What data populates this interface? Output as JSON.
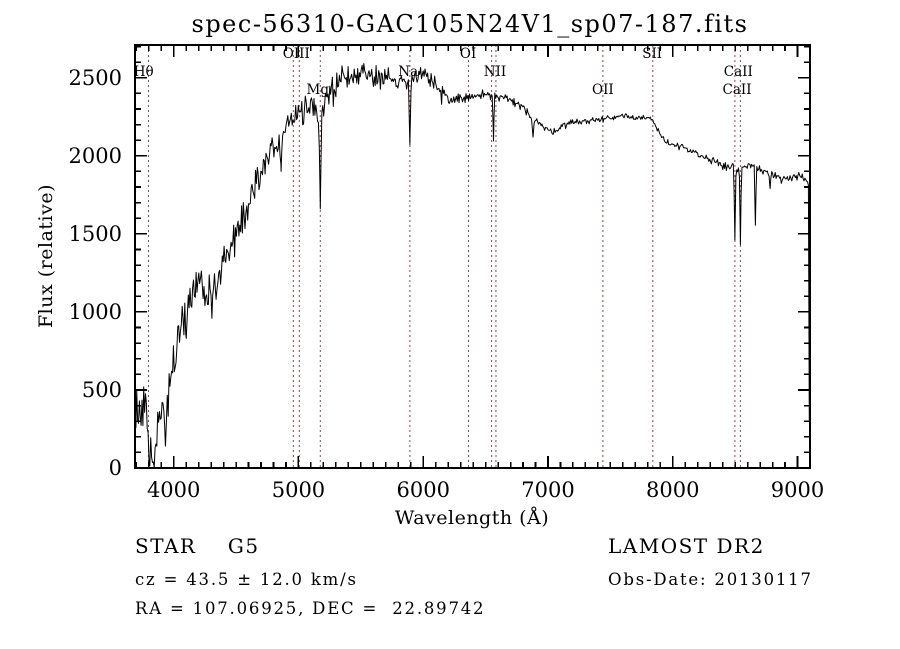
{
  "title": "spec-56310-GAC105N24V1_sp07-187.fits",
  "footer": {
    "class_line": "STAR    G5",
    "cz_line": "cz = 43.5 ± 12.0 km/s",
    "radec_line": "RA = 107.06925, DEC =  22.89742",
    "survey": "LAMOST DR2",
    "obs_date_line": "Obs-Date: 20130117"
  },
  "chart_data": {
    "type": "line",
    "title": "spec-56310-GAC105N24V1_sp07-187.fits",
    "xlabel": "Wavelength (Å)",
    "ylabel": "Flux (relative)",
    "xlim": [
      3690,
      9100
    ],
    "ylim": [
      0,
      2710
    ],
    "x_major_ticks": [
      4000,
      5000,
      6000,
      7000,
      8000,
      9000
    ],
    "x_minor_step": 100,
    "y_major_ticks": [
      0,
      500,
      1000,
      1500,
      2000,
      2500
    ],
    "y_minor_step": 100,
    "grid": false,
    "legend": "none",
    "line_color": "#000000",
    "marker_line_color": "#8a4a4a",
    "spectral_line_markers": [
      {
        "label": "Hθ",
        "row": "mid",
        "wavelengths": [
          3798
        ],
        "label_at": 3760
      },
      {
        "label": "OIII",
        "row": "top",
        "wavelengths": [
          4959,
          5007
        ],
        "label_at": 4983
      },
      {
        "label": "Mg",
        "row": "low",
        "wavelengths": [
          5175
        ],
        "label_at": 5155
      },
      {
        "label": "Na",
        "row": "mid",
        "wavelengths": [
          5893
        ],
        "label_at": 5880
      },
      {
        "label": "OI",
        "row": "top",
        "wavelengths": [
          6363
        ],
        "label_at": 6360
      },
      {
        "label": "NII",
        "row": "mid",
        "wavelengths": [
          6548,
          6583
        ],
        "label_at": 6575
      },
      {
        "label": "OII",
        "row": "low",
        "wavelengths": [
          7440
        ],
        "label_at": 7440
      },
      {
        "label": "SII",
        "row": "top",
        "wavelengths": [
          7840
        ],
        "label_at": 7835
      },
      {
        "label": "CaII",
        "row": "mid",
        "wavelengths": [
          8498
        ],
        "label_at": 8525
      },
      {
        "label": "CaII",
        "row": "low",
        "wavelengths": [
          8542
        ],
        "label_at": 8515
      }
    ],
    "continuum_anchors": [
      [
        3690,
        260
      ],
      [
        3715,
        390
      ],
      [
        3740,
        310
      ],
      [
        3765,
        430
      ],
      [
        3790,
        330
      ],
      [
        3808,
        110
      ],
      [
        3830,
        80
      ],
      [
        3858,
        150
      ],
      [
        3885,
        330
      ],
      [
        3910,
        430
      ],
      [
        3935,
        380
      ],
      [
        3960,
        520
      ],
      [
        3985,
        620
      ],
      [
        4010,
        720
      ],
      [
        4040,
        860
      ],
      [
        4070,
        950
      ],
      [
        4100,
        1010
      ],
      [
        4130,
        1090
      ],
      [
        4160,
        1150
      ],
      [
        4200,
        1230
      ],
      [
        4235,
        1180
      ],
      [
        4270,
        1090
      ],
      [
        4305,
        1100
      ],
      [
        4340,
        1200
      ],
      [
        4380,
        1300
      ],
      [
        4420,
        1380
      ],
      [
        4460,
        1460
      ],
      [
        4500,
        1530
      ],
      [
        4550,
        1610
      ],
      [
        4600,
        1700
      ],
      [
        4650,
        1800
      ],
      [
        4700,
        1900
      ],
      [
        4750,
        1990
      ],
      [
        4800,
        2060
      ],
      [
        4860,
        2110
      ],
      [
        4910,
        2190
      ],
      [
        4960,
        2250
      ],
      [
        5010,
        2290
      ],
      [
        5060,
        2310
      ],
      [
        5110,
        2330
      ],
      [
        5170,
        2300
      ],
      [
        5220,
        2380
      ],
      [
        5270,
        2430
      ],
      [
        5320,
        2470
      ],
      [
        5370,
        2505
      ],
      [
        5420,
        2520
      ],
      [
        5470,
        2530
      ],
      [
        5520,
        2535
      ],
      [
        5570,
        2525
      ],
      [
        5620,
        2515
      ],
      [
        5680,
        2505
      ],
      [
        5740,
        2495
      ],
      [
        5800,
        2485
      ],
      [
        5860,
        2465
      ],
      [
        5920,
        2500
      ],
      [
        5970,
        2535
      ],
      [
        6010,
        2540
      ],
      [
        6060,
        2505
      ],
      [
        6110,
        2440
      ],
      [
        6160,
        2390
      ],
      [
        6210,
        2360
      ],
      [
        6260,
        2370
      ],
      [
        6310,
        2385
      ],
      [
        6360,
        2365
      ],
      [
        6410,
        2380
      ],
      [
        6460,
        2390
      ],
      [
        6510,
        2390
      ],
      [
        6560,
        2385
      ],
      [
        6610,
        2380
      ],
      [
        6660,
        2370
      ],
      [
        6710,
        2350
      ],
      [
        6760,
        2330
      ],
      [
        6810,
        2300
      ],
      [
        6860,
        2255
      ],
      [
        6910,
        2225
      ],
      [
        6960,
        2185
      ],
      [
        7010,
        2160
      ],
      [
        7060,
        2165
      ],
      [
        7110,
        2190
      ],
      [
        7160,
        2210
      ],
      [
        7210,
        2220
      ],
      [
        7310,
        2225
      ],
      [
        7410,
        2230
      ],
      [
        7510,
        2245
      ],
      [
        7610,
        2260
      ],
      [
        7710,
        2250
      ],
      [
        7810,
        2240
      ],
      [
        7860,
        2200
      ],
      [
        7900,
        2130
      ],
      [
        7950,
        2090
      ],
      [
        8000,
        2075
      ],
      [
        8060,
        2060
      ],
      [
        8120,
        2040
      ],
      [
        8180,
        2010
      ],
      [
        8250,
        1990
      ],
      [
        8320,
        1970
      ],
      [
        8390,
        1950
      ],
      [
        8460,
        1935
      ],
      [
        8520,
        1915
      ],
      [
        8580,
        1935
      ],
      [
        8640,
        1940
      ],
      [
        8700,
        1905
      ],
      [
        8760,
        1885
      ],
      [
        8820,
        1880
      ],
      [
        8880,
        1860
      ],
      [
        8940,
        1855
      ],
      [
        9000,
        1880
      ],
      [
        9040,
        1865
      ],
      [
        9080,
        1835
      ],
      [
        9087,
        1820
      ],
      [
        9091,
        1200
      ],
      [
        9094,
        300
      ],
      [
        9098,
        120
      ]
    ],
    "noise_amplitude": [
      [
        3690,
        210
      ],
      [
        3900,
        175
      ],
      [
        4100,
        155
      ],
      [
        4400,
        135
      ],
      [
        4700,
        120
      ],
      [
        5000,
        108
      ],
      [
        5300,
        96
      ],
      [
        5600,
        90
      ],
      [
        5900,
        72
      ],
      [
        6100,
        56
      ],
      [
        6300,
        46
      ],
      [
        6500,
        38
      ],
      [
        6800,
        33
      ],
      [
        7200,
        28
      ],
      [
        7800,
        27
      ],
      [
        8300,
        27
      ],
      [
        8700,
        30
      ],
      [
        9000,
        33
      ],
      [
        9082,
        28
      ],
      [
        9088,
        10
      ],
      [
        9100,
        6
      ]
    ],
    "absorption_dips": [
      [
        3934,
        140,
        12
      ],
      [
        4101,
        830,
        10
      ],
      [
        4340,
        1080,
        10
      ],
      [
        4861,
        1900,
        9
      ],
      [
        5175,
        1660,
        13
      ],
      [
        5893,
        2070,
        11
      ],
      [
        6563,
        2095,
        8
      ],
      [
        6880,
        2120,
        12
      ],
      [
        8498,
        1460,
        9
      ],
      [
        8542,
        1430,
        9
      ],
      [
        8662,
        1555,
        9
      ],
      [
        8780,
        1790,
        9
      ]
    ]
  }
}
